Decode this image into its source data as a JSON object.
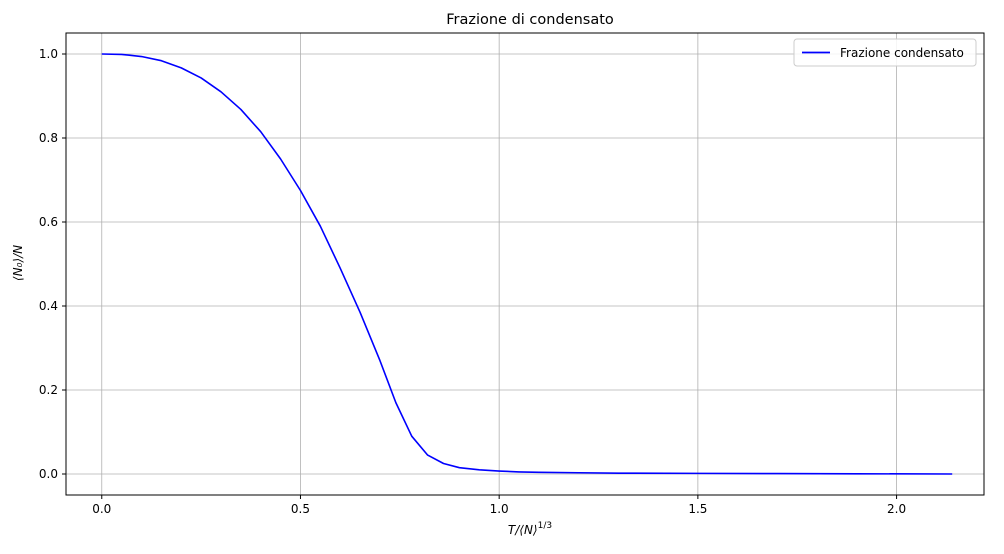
{
  "chart_data": {
    "type": "line",
    "title": "Frazione di condensato",
    "xlabel": "T/⟨N⟩^(1/3)",
    "ylabel": "⟨N₀⟩/N",
    "xlim": [
      -0.09,
      2.22
    ],
    "ylim": [
      -0.05,
      1.05
    ],
    "xticks": [
      0.0,
      0.5,
      1.0,
      1.5,
      2.0
    ],
    "xtick_labels": [
      "0.0",
      "0.5",
      "1.0",
      "1.5",
      "2.0"
    ],
    "yticks": [
      0.0,
      0.2,
      0.4,
      0.6,
      0.8,
      1.0
    ],
    "ytick_labels": [
      "0.0",
      "0.2",
      "0.4",
      "0.6",
      "0.8",
      "1.0"
    ],
    "grid": true,
    "legend_position": "top-right",
    "series": [
      {
        "name": "Frazione condensato",
        "color": "#0000ff",
        "x": [
          0.0,
          0.05,
          0.1,
          0.15,
          0.2,
          0.25,
          0.3,
          0.35,
          0.4,
          0.45,
          0.5,
          0.55,
          0.6,
          0.65,
          0.7,
          0.74,
          0.78,
          0.82,
          0.86,
          0.9,
          0.95,
          1.0,
          1.05,
          1.1,
          1.2,
          1.3,
          1.5,
          1.7,
          1.9,
          2.14
        ],
        "y": [
          1.0,
          0.999,
          0.994,
          0.984,
          0.967,
          0.943,
          0.91,
          0.868,
          0.815,
          0.75,
          0.675,
          0.59,
          0.49,
          0.385,
          0.27,
          0.17,
          0.09,
          0.045,
          0.025,
          0.015,
          0.01,
          0.007,
          0.005,
          0.004,
          0.003,
          0.002,
          0.0015,
          0.001,
          0.0005,
          0.0
        ]
      }
    ]
  }
}
